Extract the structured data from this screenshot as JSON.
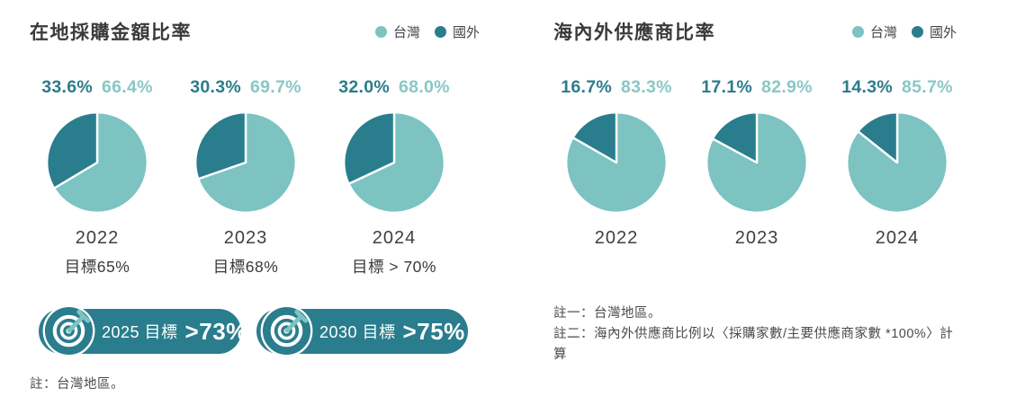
{
  "colors": {
    "taiwan": "#7cc3c2",
    "foreign": "#2a7d8d",
    "taiwan_text": "#8ac7c6",
    "foreign_text": "#2b7c8c",
    "pill_bg": "#2a7d8d",
    "pill_text": "#ffffff",
    "slice_divider": "#ffffff"
  },
  "legend": {
    "taiwan": "台灣",
    "foreign": "國外"
  },
  "left_panel": {
    "title": "在地採購金額比率",
    "pies": [
      {
        "year": "2022",
        "foreign_pct": "33.6%",
        "taiwan_pct": "66.4%",
        "foreign_value": 33.6,
        "target": "目標65%"
      },
      {
        "year": "2023",
        "foreign_pct": "30.3%",
        "taiwan_pct": "69.7%",
        "foreign_value": 30.3,
        "target": "目標68%"
      },
      {
        "year": "2024",
        "foreign_pct": "32.0%",
        "taiwan_pct": "68.0%",
        "foreign_value": 32.0,
        "target": "目標 > 70%"
      }
    ],
    "goal_pills": [
      {
        "prefix": "2025 目標",
        "value": ">73%"
      },
      {
        "prefix": "2030 目標",
        "value": ">75%"
      }
    ],
    "note": "註：台灣地區。"
  },
  "right_panel": {
    "title": "海內外供應商比率",
    "pies": [
      {
        "year": "2022",
        "foreign_pct": "16.7%",
        "taiwan_pct": "83.3%",
        "foreign_value": 16.7
      },
      {
        "year": "2023",
        "foreign_pct": "17.1%",
        "taiwan_pct": "82.9%",
        "foreign_value": 17.1
      },
      {
        "year": "2024",
        "foreign_pct": "14.3%",
        "taiwan_pct": "85.7%",
        "foreign_value": 14.3
      }
    ],
    "notes": [
      "註一：台灣地區。",
      "註二：海內外供應商比例以〈採購家數/主要供應商家數 *100%〉計算"
    ]
  },
  "chart_data": [
    {
      "type": "pie",
      "title": "在地採購金額比率",
      "legend": [
        "台灣",
        "國外"
      ],
      "legend_position": "top-right",
      "series": [
        {
          "year": "2022",
          "taiwan": 66.4,
          "foreign": 33.6,
          "target": "目標65%"
        },
        {
          "year": "2023",
          "taiwan": 69.7,
          "foreign": 30.3,
          "target": "目標68%"
        },
        {
          "year": "2024",
          "taiwan": 68.0,
          "foreign": 32.0,
          "target": "目標 > 70%"
        }
      ],
      "future_targets": [
        "2025 目標 >73%",
        "2030 目標 >75%"
      ],
      "note": "註：台灣地區。",
      "unit": "%"
    },
    {
      "type": "pie",
      "title": "海內外供應商比率",
      "legend": [
        "台灣",
        "國外"
      ],
      "legend_position": "top-right",
      "series": [
        {
          "year": "2022",
          "taiwan": 83.3,
          "foreign": 16.7
        },
        {
          "year": "2023",
          "taiwan": 82.9,
          "foreign": 17.1
        },
        {
          "year": "2024",
          "taiwan": 85.7,
          "foreign": 14.3
        }
      ],
      "notes": [
        "註一：台灣地區。",
        "註二：海內外供應商比例以〈採購家數/主要供應商家數 *100%〉計算"
      ],
      "unit": "%"
    }
  ]
}
